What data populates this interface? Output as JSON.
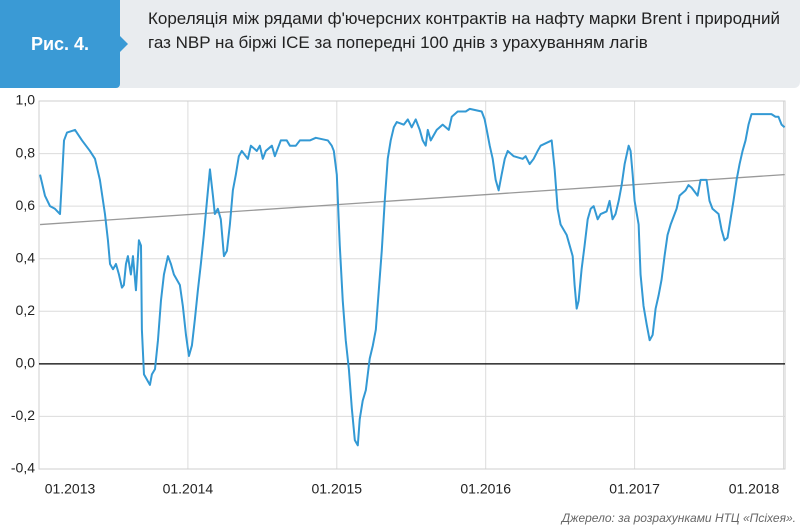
{
  "chart_data": {
    "type": "line",
    "figure_label": "Рис. 4.",
    "title": "Кореляція між рядами ф'ючерсних контрактів на нафту марки Brent і природний газ NBP на біржі ICE за попередні 100 днів з урахуванням лагів",
    "source": "Джерело: за розрахунками НТЦ «Псіхея».",
    "x": [
      2013.007,
      2013.04,
      2013.074,
      2013.107,
      2013.141,
      2013.154,
      2013.168,
      2013.188,
      2013.242,
      2013.289,
      2013.342,
      2013.376,
      2013.409,
      2013.443,
      2013.463,
      2013.477,
      2013.497,
      2013.517,
      2013.537,
      2013.557,
      2013.57,
      2013.584,
      2013.597,
      2013.617,
      2013.631,
      2013.651,
      2013.671,
      2013.685,
      2013.691,
      2013.705,
      2013.725,
      2013.745,
      2013.758,
      2013.779,
      2013.799,
      2013.819,
      2013.839,
      2013.866,
      2013.886,
      2013.906,
      2013.946,
      2013.966,
      2013.987,
      2014.007,
      2014.027,
      2014.047,
      2014.067,
      2014.087,
      2014.107,
      2014.128,
      2014.148,
      2014.168,
      2014.181,
      2014.201,
      2014.221,
      2014.242,
      2014.262,
      2014.282,
      2014.302,
      2014.322,
      2014.342,
      2014.362,
      2014.403,
      2014.423,
      2014.463,
      2014.483,
      2014.503,
      2014.523,
      2014.564,
      2014.584,
      2014.624,
      2014.664,
      2014.685,
      2014.725,
      2014.752,
      2014.819,
      2014.859,
      2014.94,
      2014.966,
      2014.98,
      2015.0,
      2015.02,
      2015.04,
      2015.06,
      2015.081,
      2015.101,
      2015.121,
      2015.141,
      2015.154,
      2015.174,
      2015.195,
      2015.221,
      2015.242,
      2015.262,
      2015.282,
      2015.302,
      2015.322,
      2015.342,
      2015.362,
      2015.383,
      2015.403,
      2015.45,
      2015.477,
      2015.503,
      2015.53,
      2015.557,
      2015.577,
      2015.597,
      2015.611,
      2015.631,
      2015.671,
      2015.711,
      2015.752,
      2015.772,
      2015.812,
      2015.866,
      2015.893,
      2015.973,
      2015.993,
      2016.007,
      2016.027,
      2016.047,
      2016.067,
      2016.087,
      2016.107,
      2016.128,
      2016.148,
      2016.188,
      2016.248,
      2016.268,
      2016.295,
      2016.322,
      2016.349,
      2016.369,
      2016.443,
      2016.463,
      2016.483,
      2016.503,
      2016.544,
      2016.564,
      2016.584,
      2016.597,
      2016.611,
      2016.624,
      2016.644,
      2016.664,
      2016.685,
      2016.705,
      2016.725,
      2016.752,
      2016.772,
      2016.812,
      2016.832,
      2016.852,
      2016.872,
      2016.893,
      2016.913,
      2016.933,
      2016.96,
      2016.973,
      2016.987,
      2017.0,
      2017.027,
      2017.04,
      2017.06,
      2017.081,
      2017.101,
      2017.121,
      2017.141,
      2017.161,
      2017.181,
      2017.201,
      2017.221,
      2017.242,
      2017.282,
      2017.302,
      2017.342,
      2017.362,
      2017.383,
      2017.423,
      2017.443,
      2017.483,
      2017.503,
      2017.523,
      2017.564,
      2017.584,
      2017.604,
      2017.624,
      2017.644,
      2017.664,
      2017.685,
      2017.705,
      2017.725,
      2017.745,
      2017.765,
      2017.785,
      2017.893,
      2017.919,
      2017.946,
      2017.966,
      2017.987,
      2018.007
    ],
    "series": [
      {
        "color": "#3399d4",
        "values": [
          0.72,
          0.64,
          0.6,
          0.59,
          0.57,
          0.7,
          0.85,
          0.88,
          0.89,
          0.85,
          0.81,
          0.78,
          0.7,
          0.57,
          0.47,
          0.38,
          0.36,
          0.38,
          0.34,
          0.29,
          0.3,
          0.38,
          0.41,
          0.34,
          0.41,
          0.28,
          0.47,
          0.45,
          0.13,
          -0.04,
          -0.06,
          -0.08,
          -0.04,
          -0.02,
          0.09,
          0.24,
          0.34,
          0.41,
          0.38,
          0.34,
          0.3,
          0.22,
          0.11,
          0.03,
          0.07,
          0.17,
          0.28,
          0.38,
          0.49,
          0.62,
          0.74,
          0.64,
          0.57,
          0.59,
          0.55,
          0.41,
          0.43,
          0.53,
          0.66,
          0.72,
          0.79,
          0.81,
          0.78,
          0.83,
          0.81,
          0.83,
          0.78,
          0.81,
          0.83,
          0.79,
          0.85,
          0.85,
          0.83,
          0.83,
          0.85,
          0.85,
          0.86,
          0.85,
          0.83,
          0.81,
          0.72,
          0.45,
          0.24,
          0.09,
          -0.02,
          -0.17,
          -0.29,
          -0.31,
          -0.21,
          -0.14,
          -0.1,
          0.02,
          0.07,
          0.13,
          0.28,
          0.43,
          0.62,
          0.78,
          0.85,
          0.9,
          0.92,
          0.91,
          0.93,
          0.9,
          0.93,
          0.89,
          0.85,
          0.83,
          0.89,
          0.85,
          0.89,
          0.91,
          0.89,
          0.94,
          0.96,
          0.96,
          0.97,
          0.96,
          0.93,
          0.89,
          0.83,
          0.78,
          0.7,
          0.66,
          0.72,
          0.78,
          0.81,
          0.79,
          0.78,
          0.79,
          0.76,
          0.78,
          0.81,
          0.83,
          0.85,
          0.74,
          0.59,
          0.53,
          0.49,
          0.45,
          0.41,
          0.3,
          0.21,
          0.24,
          0.36,
          0.45,
          0.55,
          0.59,
          0.6,
          0.55,
          0.57,
          0.58,
          0.62,
          0.55,
          0.57,
          0.62,
          0.68,
          0.76,
          0.83,
          0.81,
          0.72,
          0.62,
          0.53,
          0.34,
          0.22,
          0.15,
          0.09,
          0.11,
          0.21,
          0.26,
          0.32,
          0.41,
          0.49,
          0.53,
          0.59,
          0.64,
          0.66,
          0.68,
          0.67,
          0.64,
          0.7,
          0.7,
          0.62,
          0.59,
          0.57,
          0.51,
          0.47,
          0.48,
          0.55,
          0.62,
          0.7,
          0.76,
          0.81,
          0.85,
          0.91,
          0.95,
          0.95,
          0.95,
          0.94,
          0.94,
          0.91,
          0.9
        ]
      }
    ],
    "trend": {
      "color": "#999999",
      "x": [
        2013.007,
        2018.007
      ],
      "values": [
        0.53,
        0.72
      ]
    },
    "xlim": [
      2013,
      2018.01
    ],
    "xticks": [
      {
        "value": 2013,
        "label": "01.2013"
      },
      {
        "value": 2014,
        "label": "01.2014"
      },
      {
        "value": 2015,
        "label": "01.2015"
      },
      {
        "value": 2016,
        "label": "01.2016"
      },
      {
        "value": 2017,
        "label": "01.2017"
      },
      {
        "value": 2018,
        "label": "01.2018"
      }
    ],
    "ylim": [
      -0.4,
      1.0
    ],
    "yticks": [
      {
        "value": 1.0,
        "label": "1,0"
      },
      {
        "value": 0.8,
        "label": "0,8"
      },
      {
        "value": 0.6,
        "label": "0,6"
      },
      {
        "value": 0.4,
        "label": "0,4"
      },
      {
        "value": 0.2,
        "label": "0,2"
      },
      {
        "value": 0.0,
        "label": "0,0"
      },
      {
        "value": -0.2,
        "label": "-0,2"
      },
      {
        "value": -0.4,
        "label": "-0,4"
      }
    ],
    "grid": true
  }
}
